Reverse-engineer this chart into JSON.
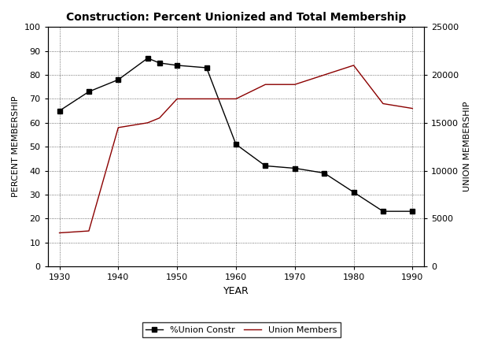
{
  "title": "Construction: Percent Unionized and Total Membership",
  "xlabel": "YEAR",
  "ylabel_left": "PERCENT MEMBERSHIP",
  "ylabel_right": "UNION MEMBERSHIP",
  "years": [
    1930,
    1935,
    1940,
    1945,
    1947,
    1950,
    1955,
    1960,
    1965,
    1970,
    1975,
    1980,
    1985,
    1990
  ],
  "pct_union": [
    65,
    73,
    78,
    87,
    85,
    84,
    83,
    51,
    42,
    41,
    39,
    31,
    23,
    23
  ],
  "union_members": [
    3500,
    3700,
    14500,
    15000,
    15500,
    17500,
    17500,
    17500,
    19000,
    19000,
    20000,
    21000,
    17000,
    16500
  ],
  "line1_color": "#000000",
  "line2_color": "#8B0000",
  "marker": "s",
  "xlim": [
    1928,
    1992
  ],
  "ylim_left": [
    0,
    100
  ],
  "ylim_right": [
    0,
    25000
  ],
  "yticks_left": [
    0,
    10,
    20,
    30,
    40,
    50,
    60,
    70,
    80,
    90,
    100
  ],
  "yticks_right": [
    0,
    5000,
    10000,
    15000,
    20000,
    25000
  ],
  "ytick_right_labels": [
    "0",
    "5000",
    "10000",
    "15000",
    "20000",
    "25000"
  ],
  "xticks": [
    1930,
    1940,
    1950,
    1960,
    1970,
    1980,
    1990
  ],
  "legend_label1": "%Union Constr",
  "legend_label2": "Union Members",
  "bg_color": "#ffffff",
  "plot_bg_color": "#ffffff"
}
